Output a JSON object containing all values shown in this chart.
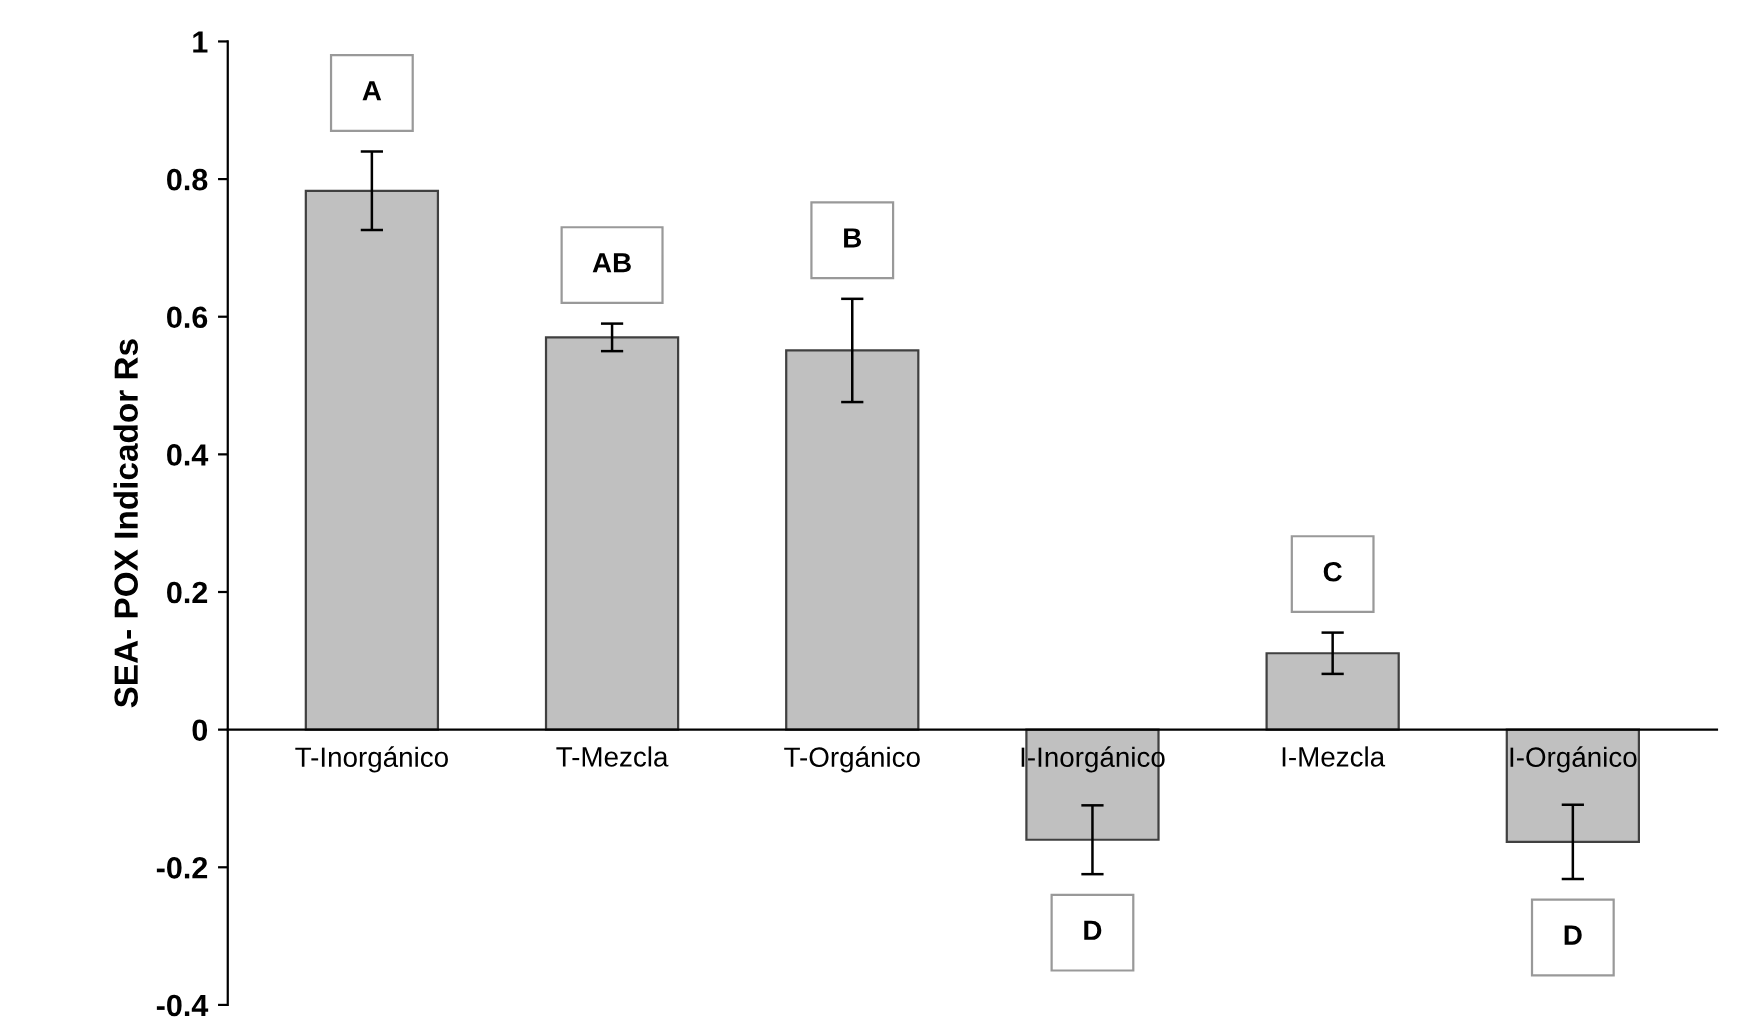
{
  "chart_data": {
    "type": "bar",
    "ylabel": "SEA- POX Indicador Rs",
    "categories": [
      "T-Inorgánico",
      "T-Mezcla",
      "T-Orgánico",
      "I-Inorgánico",
      "I-Mezcla",
      "I-Orgánico"
    ],
    "values": [
      0.783,
      0.57,
      0.551,
      -0.16,
      0.111,
      -0.163
    ],
    "errors": [
      0.057,
      0.02,
      0.075,
      0.05,
      0.03,
      0.054
    ],
    "color": "#c0c0c0",
    "ylim": [
      -0.4,
      1
    ],
    "yticks": [
      {
        "value": -0.4,
        "label": "-0.4"
      },
      {
        "value": -0.2,
        "label": "-0.2"
      },
      0,
      0.2,
      0.4,
      0.6,
      0.8,
      1
    ],
    "annotations": [
      "A",
      "AB",
      "B",
      "D",
      "C",
      "D"
    ],
    "grid": false,
    "legend": false
  }
}
